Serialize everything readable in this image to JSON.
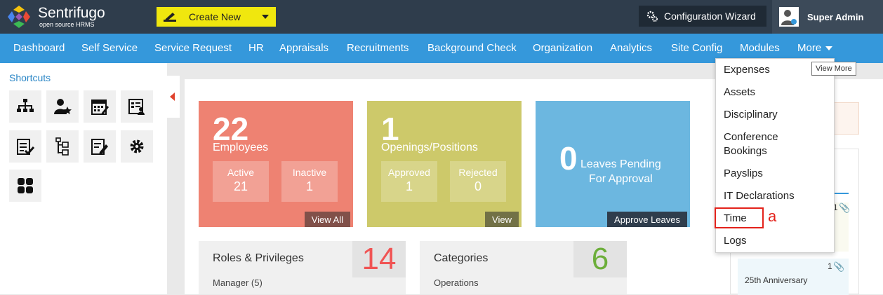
{
  "header": {
    "logo_name": "Sentrifugo",
    "logo_tagline": "open source HRMS",
    "create_new_label": "Create New",
    "config_wizard_label": "Configuration Wizard",
    "user_name": "Super Admin"
  },
  "nav": {
    "items": [
      "Dashboard",
      "Self Service",
      "Service Request",
      "HR",
      "Appraisals",
      "Recruitments",
      "Background Check",
      "Organization",
      "Analytics",
      "Site Config",
      "Modules",
      "More"
    ]
  },
  "sidebar": {
    "title": "Shortcuts",
    "shortcuts": [
      "org-chart-icon",
      "employee-star-icon",
      "calendar-icon",
      "id-card-icon",
      "approval-list-icon",
      "hierarchy-doc-icon",
      "edit-document-icon",
      "gear-icon",
      "grid-icon"
    ]
  },
  "cards": {
    "employees": {
      "count": "22",
      "label": "Employees",
      "active_label": "Active",
      "active_value": "21",
      "inactive_label": "Inactive",
      "inactive_value": "1",
      "link": "View All"
    },
    "openings": {
      "count": "1",
      "label": "Openings/Positions",
      "approved_label": "Approved",
      "approved_value": "1",
      "rejected_label": "Rejected",
      "rejected_value": "0",
      "link": "View"
    },
    "leaves": {
      "count": "0",
      "label_line1": "Leaves Pending",
      "label_line2": "For Approval",
      "link": "Approve Leaves"
    }
  },
  "stats": {
    "roles": {
      "label": "Roles & Privileges",
      "value": "14",
      "first_item": "Manager (5)",
      "color": "#f05454"
    },
    "categories": {
      "label": "Categories",
      "value": "6",
      "first_item": "Operations",
      "color": "#6cae3a"
    }
  },
  "right_panel": {
    "event_text": "25th Anniversary",
    "clip_count_1": "1",
    "clip_count_2": "1"
  },
  "more_menu": {
    "items": [
      "Expenses",
      "Assets",
      "Disciplinary",
      "Conference Bookings",
      "Payslips",
      "IT Declarations",
      "Time",
      "Logs"
    ],
    "tooltip": "View More",
    "annotation": "a"
  }
}
